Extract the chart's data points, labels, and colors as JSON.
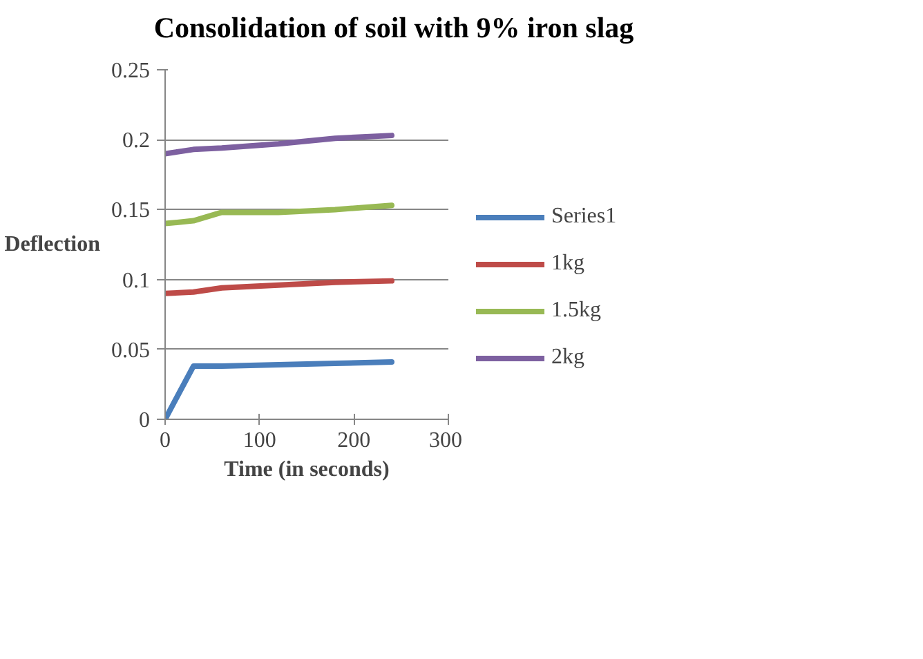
{
  "chart_data": {
    "type": "line",
    "title": "Consolidation of soil with 9% iron slag",
    "xlabel": "Time (in seconds)",
    "ylabel": "Deflection",
    "x": [
      0,
      30,
      60,
      120,
      180,
      240
    ],
    "series": [
      {
        "name": "Series1",
        "color": "#4a7ebb",
        "values": [
          0,
          0.038,
          0.038,
          0.039,
          0.04,
          0.041
        ]
      },
      {
        "name": "1kg",
        "color": "#be4b48",
        "values": [
          0.09,
          0.091,
          0.094,
          0.096,
          0.098,
          0.099
        ]
      },
      {
        "name": "1.5kg",
        "color": "#98b954",
        "values": [
          0.14,
          0.142,
          0.148,
          0.148,
          0.15,
          0.153
        ]
      },
      {
        "name": "2kg",
        "color": "#7d60a0",
        "values": [
          0.19,
          0.193,
          0.194,
          0.197,
          0.201,
          0.203
        ]
      }
    ],
    "xlim": [
      0,
      300
    ],
    "xticks": [
      0,
      100,
      200,
      300
    ],
    "ylim": [
      0,
      0.25
    ],
    "yticks": [
      0,
      0.05,
      0.1,
      0.15,
      0.2,
      0.25
    ],
    "grid": "y",
    "legend": "right",
    "marker": "none",
    "line_style": "solid"
  }
}
